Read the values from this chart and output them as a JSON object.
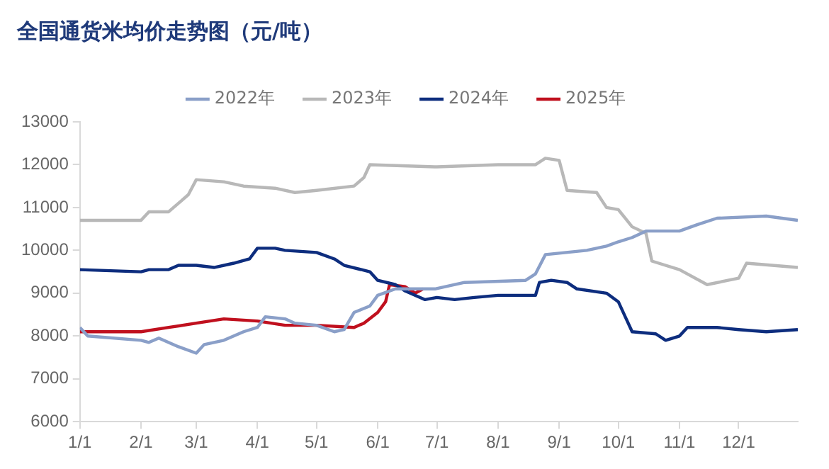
{
  "chart_data": {
    "type": "line",
    "title": "全国通货米均价走势图（元/吨）",
    "xlim": [
      "--01-01",
      "--12-31"
    ],
    "xticks": [
      {
        "value": "--01-01",
        "label": "1/1"
      },
      {
        "value": "--02-01",
        "label": "2/1"
      },
      {
        "value": "--03-01",
        "label": "3/1"
      },
      {
        "value": "--04-01",
        "label": "4/1"
      },
      {
        "value": "--05-01",
        "label": "5/1"
      },
      {
        "value": "--06-01",
        "label": "6/1"
      },
      {
        "value": "--07-01",
        "label": "7/1"
      },
      {
        "value": "--08-01",
        "label": "8/1"
      },
      {
        "value": "--09-01",
        "label": "9/1"
      },
      {
        "value": "--10-01",
        "label": "10/1"
      },
      {
        "value": "--11-01",
        "label": "11/1"
      },
      {
        "value": "--12-01",
        "label": "12/1"
      }
    ],
    "ylim": [
      6000,
      13000
    ],
    "yticks": [
      6000,
      7000,
      8000,
      9000,
      10000,
      11000,
      12000,
      13000
    ],
    "grid": false,
    "legend": "top",
    "marker": "none",
    "line_style": "solid",
    "series": [
      {
        "name": "2022年",
        "color": "#8a9fc8",
        "x": [
          "--01-01",
          "--01-05",
          "--02-01",
          "--02-05",
          "--02-10",
          "--02-20",
          "--03-01",
          "--03-05",
          "--03-15",
          "--03-25",
          "--04-01",
          "--04-05",
          "--04-15",
          "--04-20",
          "--05-01",
          "--05-10",
          "--05-15",
          "--05-20",
          "--05-28",
          "--06-01",
          "--06-10",
          "--06-30",
          "--07-15",
          "--08-15",
          "--08-20",
          "--08-25",
          "--09-15",
          "--09-25",
          "--10-01",
          "--10-08",
          "--10-15",
          "--11-01",
          "--11-10",
          "--11-20",
          "--12-15",
          "--12-31"
        ],
        "values": [
          8200,
          8000,
          7900,
          7850,
          7950,
          7750,
          7600,
          7800,
          7900,
          8100,
          8200,
          8450,
          8400,
          8300,
          8250,
          8100,
          8150,
          8550,
          8700,
          8950,
          9100,
          9100,
          9250,
          9300,
          9450,
          9900,
          10000,
          10100,
          10200,
          10300,
          10450,
          10450,
          10600,
          10750,
          10800,
          10700
        ]
      },
      {
        "name": "2023年",
        "color": "#b8b8b8",
        "x": [
          "--01-01",
          "--02-01",
          "--02-05",
          "--02-15",
          "--02-20",
          "--02-25",
          "--03-01",
          "--03-15",
          "--03-25",
          "--04-10",
          "--04-20",
          "--05-01",
          "--05-20",
          "--05-25",
          "--05-28",
          "--06-30",
          "--07-01",
          "--08-01",
          "--08-20",
          "--08-25",
          "--09-01",
          "--09-05",
          "--09-20",
          "--09-25",
          "--10-01",
          "--10-08",
          "--10-15",
          "--10-18",
          "--11-01",
          "--11-15",
          "--12-01",
          "--12-05",
          "--12-31"
        ],
        "values": [
          10700,
          10700,
          10900,
          10900,
          11100,
          11300,
          11650,
          11600,
          11500,
          11450,
          11350,
          11400,
          11500,
          11700,
          12000,
          11950,
          11950,
          12000,
          12000,
          12150,
          12100,
          11400,
          11350,
          11000,
          10950,
          10550,
          10400,
          9750,
          9550,
          9200,
          9350,
          9700,
          9600
        ]
      },
      {
        "name": "2024年",
        "color": "#0d2d7e",
        "x": [
          "--01-01",
          "--02-01",
          "--02-05",
          "--02-15",
          "--02-20",
          "--03-01",
          "--03-10",
          "--03-20",
          "--03-28",
          "--04-01",
          "--04-10",
          "--04-15",
          "--05-01",
          "--05-10",
          "--05-15",
          "--05-28",
          "--06-01",
          "--06-10",
          "--06-15",
          "--06-25",
          "--07-01",
          "--07-10",
          "--07-20",
          "--08-01",
          "--08-20",
          "--08-22",
          "--08-28",
          "--09-05",
          "--09-10",
          "--09-25",
          "--10-01",
          "--10-05",
          "--10-08",
          "--10-20",
          "--10-25",
          "--11-01",
          "--11-05",
          "--11-20",
          "--12-01",
          "--12-15",
          "--12-31"
        ],
        "values": [
          9550,
          9500,
          9550,
          9550,
          9650,
          9650,
          9600,
          9700,
          9800,
          10050,
          10050,
          10000,
          9950,
          9800,
          9650,
          9500,
          9300,
          9200,
          9050,
          8850,
          8900,
          8850,
          8900,
          8950,
          8950,
          9250,
          9300,
          9250,
          9100,
          9000,
          8800,
          8400,
          8100,
          8050,
          7900,
          8000,
          8200,
          8200,
          8150,
          8100,
          8150
        ]
      },
      {
        "name": "2025年",
        "color": "#c0101e",
        "x": [
          "--01-01",
          "--01-10",
          "--02-01",
          "--02-15",
          "--03-01",
          "--03-15",
          "--04-01",
          "--04-15",
          "--05-01",
          "--05-20",
          "--05-25",
          "--06-01",
          "--06-05",
          "--06-07",
          "--06-15",
          "--06-20",
          "--06-24"
        ],
        "values": [
          8100,
          8100,
          8100,
          8200,
          8300,
          8400,
          8350,
          8250,
          8250,
          8200,
          8300,
          8550,
          8800,
          9200,
          9150,
          9000,
          9100
        ]
      }
    ]
  }
}
